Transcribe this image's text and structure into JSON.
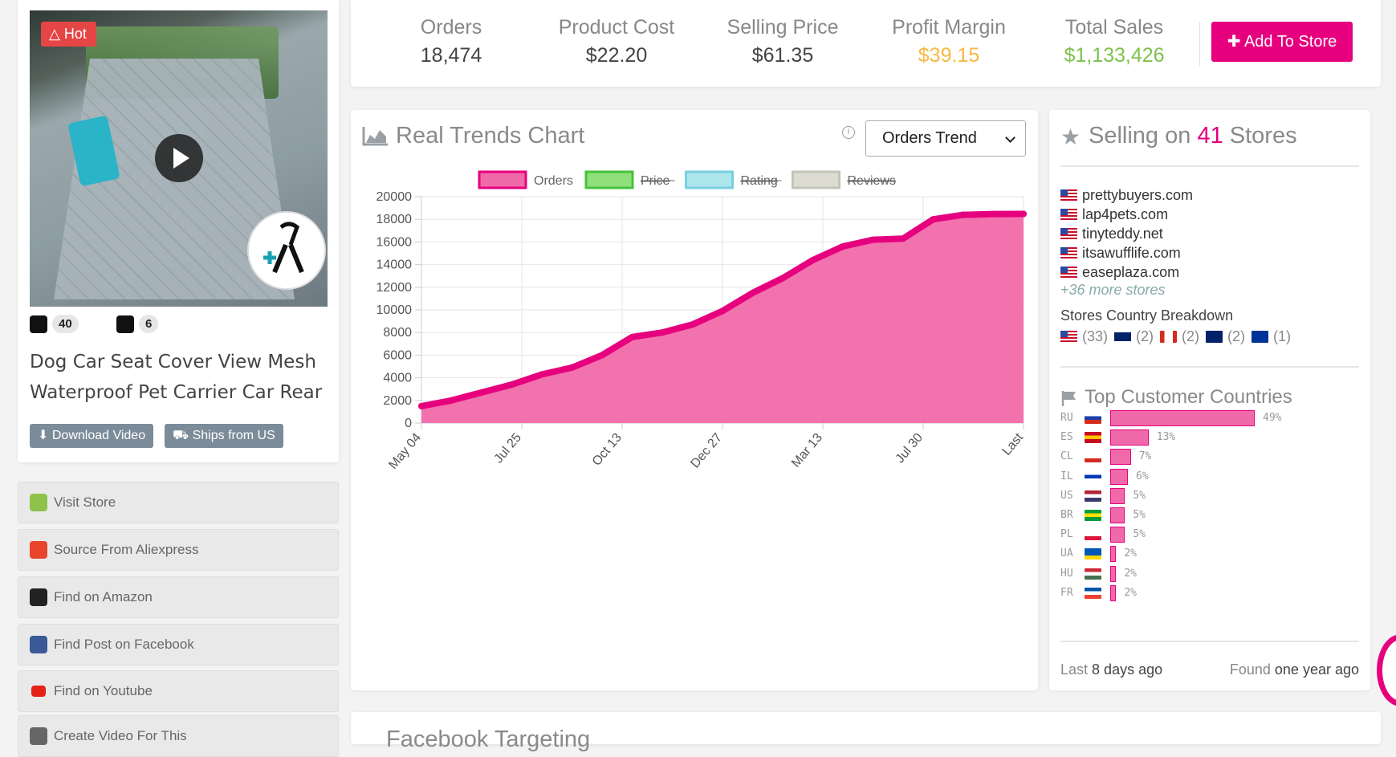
{
  "product": {
    "hot_label": "Hot",
    "title": "Dog Car Seat Cover View Mesh Waterproof Pet Carrier Car Rear",
    "shopify_count": "40",
    "other_store_count": "6",
    "download_video_label": "Download Video",
    "ships_label": "Ships from US"
  },
  "actions": [
    {
      "label": "Visit Store",
      "icon": "shopify-icon"
    },
    {
      "label": "Source From Aliexpress",
      "icon": "aliexpress-icon"
    },
    {
      "label": "Find on Amazon",
      "icon": "amazon-icon"
    },
    {
      "label": "Find Post on Facebook",
      "icon": "facebook-icon"
    },
    {
      "label": "Find on Youtube",
      "icon": "youtube-icon"
    },
    {
      "label": "Create Video For This",
      "icon": "video-icon"
    }
  ],
  "stats": {
    "orders_label": "Orders",
    "orders_value": "18,474",
    "cost_label": "Product Cost",
    "cost_value": "$22.20",
    "price_label": "Selling Price",
    "price_value": "$61.35",
    "margin_label": "Profit Margin",
    "margin_value": "$39.15",
    "sales_label": "Total Sales",
    "sales_value": "$1,133,426",
    "add_label": "Add To Store"
  },
  "colors": {
    "accent": "#e6007e",
    "margin": "#f5b942",
    "sales": "#7dc24b"
  },
  "chart": {
    "title": "Real Trends Chart",
    "select_value": "Orders Trend"
  },
  "chart_data": {
    "type": "area",
    "x_ticks": [
      "May 04",
      "Jul 25",
      "Oct 13",
      "Dec 27",
      "Mar 13",
      "Jul 30",
      "Last"
    ],
    "ylim": [
      0,
      20000
    ],
    "y_ticks": [
      0,
      2000,
      4000,
      6000,
      8000,
      10000,
      12000,
      14000,
      16000,
      18000,
      20000
    ],
    "legend": [
      {
        "name": "Orders",
        "color": "#f06aa9",
        "border": "#e6007e",
        "active": true
      },
      {
        "name": "Price",
        "color": "#8fe07a",
        "border": "#46c23a",
        "active": false
      },
      {
        "name": "Rating",
        "color": "#aee6ee",
        "border": "#79cfe0",
        "active": false
      },
      {
        "name": "Reviews",
        "color": "#dcdcd2",
        "border": "#c4c4b8",
        "active": false
      }
    ],
    "series": [
      {
        "name": "Orders",
        "x": [
          0,
          0.05,
          0.1,
          0.15,
          0.2,
          0.25,
          0.3,
          0.35,
          0.4,
          0.45,
          0.5,
          0.55,
          0.6,
          0.65,
          0.7,
          0.75,
          0.8,
          0.85,
          0.9,
          0.95,
          1.0
        ],
        "values": [
          1500,
          2000,
          2700,
          3400,
          4300,
          4900,
          6000,
          7600,
          8000,
          8700,
          9900,
          11500,
          12800,
          14400,
          15600,
          16200,
          16300,
          18000,
          18400,
          18470,
          18474
        ]
      }
    ]
  },
  "stores": {
    "title_prefix": "Selling on",
    "count": "41",
    "title_suffix": "Stores",
    "list": [
      "prettybuyers.com",
      "lap4pets.com",
      "tinyteddy.net",
      "itsawufflife.com",
      "easeplaza.com"
    ],
    "more": "+36 more stores",
    "breakdown_title": "Stores Country Breakdown",
    "breakdown": [
      {
        "flag": "us-flag-icon",
        "count": "(33)"
      },
      {
        "flag": "uk-flag-icon",
        "count": "(2)"
      },
      {
        "flag": "ca-flag-icon",
        "count": "(2)"
      },
      {
        "flag": "au-flag-icon",
        "count": "(2)"
      },
      {
        "flag": "eu-flag-icon",
        "count": "(1)"
      }
    ],
    "countries_title": "Top Customer Countries",
    "countries": [
      {
        "code": "RU",
        "pct": "49%",
        "value": 49,
        "colors": [
          "#fff",
          "#1c3faa",
          "#d52b1e"
        ]
      },
      {
        "code": "ES",
        "pct": "13%",
        "value": 13,
        "colors": [
          "#c60b1e",
          "#ffc400",
          "#c60b1e"
        ]
      },
      {
        "code": "CL",
        "pct": "7%",
        "value": 7,
        "colors": [
          "#fff",
          "#fff",
          "#d52b1e"
        ]
      },
      {
        "code": "IL",
        "pct": "6%",
        "value": 6,
        "colors": [
          "#fff",
          "#0038b8",
          "#fff"
        ]
      },
      {
        "code": "US",
        "pct": "5%",
        "value": 5,
        "colors": [
          "#b22234",
          "#fff",
          "#3c3b6e"
        ]
      },
      {
        "code": "BR",
        "pct": "5%",
        "value": 5,
        "colors": [
          "#009c3b",
          "#ffdf00",
          "#009c3b"
        ]
      },
      {
        "code": "PL",
        "pct": "5%",
        "value": 5,
        "colors": [
          "#fff",
          "#fff",
          "#dc143c"
        ]
      },
      {
        "code": "UA",
        "pct": "2%",
        "value": 2,
        "colors": [
          "#0057b7",
          "#0057b7",
          "#ffd700"
        ]
      },
      {
        "code": "HU",
        "pct": "2%",
        "value": 2,
        "colors": [
          "#ce2939",
          "#fff",
          "#477050"
        ]
      },
      {
        "code": "FR",
        "pct": "2%",
        "value": 2,
        "colors": [
          "#0055a4",
          "#fff",
          "#ef4135"
        ]
      }
    ],
    "last_label": "Last",
    "last_value": "8 days ago",
    "found_label": "Found",
    "found_value": "one year ago"
  },
  "bottom": {
    "title": "Facebook Targeting"
  }
}
